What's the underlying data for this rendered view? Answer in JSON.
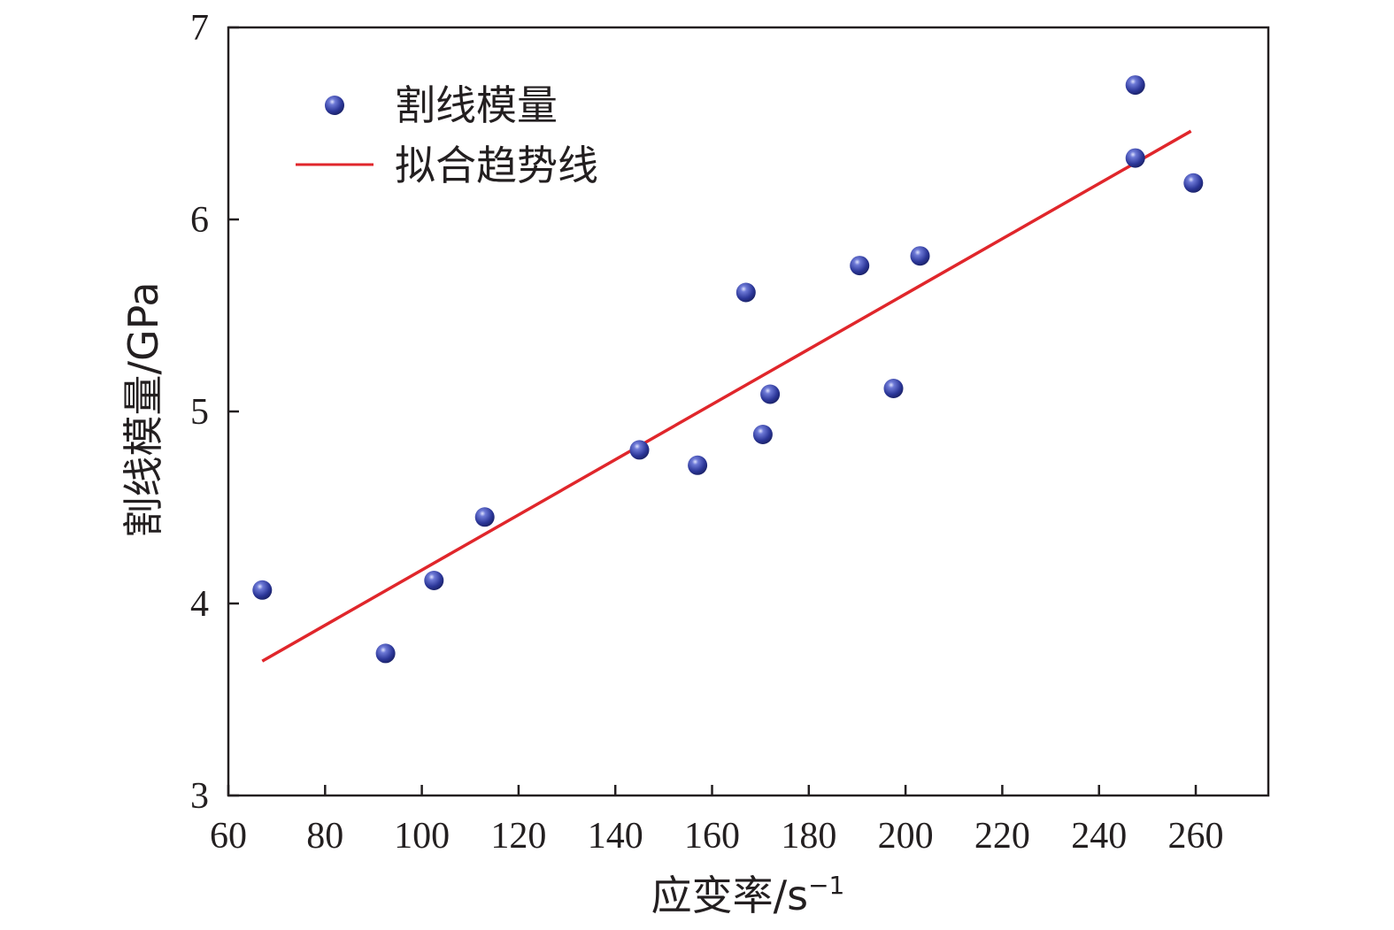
{
  "chart_data": {
    "type": "scatter",
    "title": "",
    "xlabel": "应变率/s",
    "xlabel_sup": "−1",
    "ylabel": "割线模量/GPa",
    "xlim": [
      60,
      275
    ],
    "ylim": [
      3,
      7
    ],
    "xticks": [
      60,
      80,
      100,
      120,
      140,
      160,
      180,
      200,
      220,
      240,
      260
    ],
    "yticks": [
      3,
      4,
      5,
      6,
      7
    ],
    "grid": false,
    "legend_position": "top-left",
    "series": [
      {
        "name": "割线模量",
        "kind": "scatter",
        "color": "#3a45a8",
        "points": [
          {
            "x": 67,
            "y": 4.07
          },
          {
            "x": 92.5,
            "y": 3.74
          },
          {
            "x": 102.5,
            "y": 4.12
          },
          {
            "x": 113,
            "y": 4.45
          },
          {
            "x": 145,
            "y": 4.8
          },
          {
            "x": 157,
            "y": 4.72
          },
          {
            "x": 167,
            "y": 5.62
          },
          {
            "x": 170.5,
            "y": 4.88
          },
          {
            "x": 172,
            "y": 5.09
          },
          {
            "x": 190.5,
            "y": 5.76
          },
          {
            "x": 197.5,
            "y": 5.12
          },
          {
            "x": 203,
            "y": 5.81
          },
          {
            "x": 247.5,
            "y": 6.32
          },
          {
            "x": 247.5,
            "y": 6.7
          },
          {
            "x": 259.5,
            "y": 6.19
          }
        ]
      },
      {
        "name": "拟合趋势线",
        "kind": "line",
        "color": "#e0262b",
        "points": [
          {
            "x": 67,
            "y": 3.7
          },
          {
            "x": 259,
            "y": 6.46
          }
        ]
      }
    ]
  }
}
